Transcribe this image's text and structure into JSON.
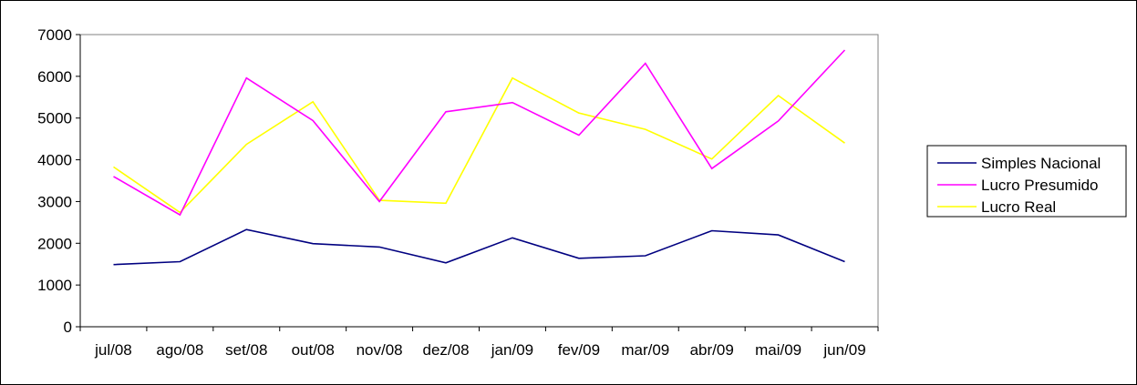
{
  "chart_data": {
    "type": "line",
    "title": "",
    "xlabel": "",
    "ylabel": "",
    "categories": [
      "jul/08",
      "ago/08",
      "set/08",
      "out/08",
      "nov/08",
      "dez/08",
      "jan/09",
      "fev/09",
      "mar/09",
      "abr/09",
      "mai/09",
      "jun/09"
    ],
    "ylim": [
      0,
      7000
    ],
    "yticks": [
      0,
      1000,
      2000,
      3000,
      4000,
      5000,
      6000,
      7000
    ],
    "grid": false,
    "legend_position": "right",
    "series": [
      {
        "name": "Simples Nacional",
        "color": "#000080",
        "values": [
          1490,
          1560,
          2330,
          1990,
          1910,
          1530,
          2130,
          1640,
          1700,
          2300,
          2200,
          1560
        ]
      },
      {
        "name": "Lucro Presumido",
        "color": "#FF00FF",
        "values": [
          3600,
          2680,
          5960,
          4940,
          3000,
          5150,
          5370,
          4590,
          6310,
          3790,
          4930,
          6630
        ]
      },
      {
        "name": "Lucro Real",
        "color": "#FFFF00",
        "values": [
          3830,
          2740,
          4370,
          5390,
          3030,
          2960,
          5960,
          5120,
          4730,
          4020,
          5540,
          4400
        ]
      }
    ]
  }
}
